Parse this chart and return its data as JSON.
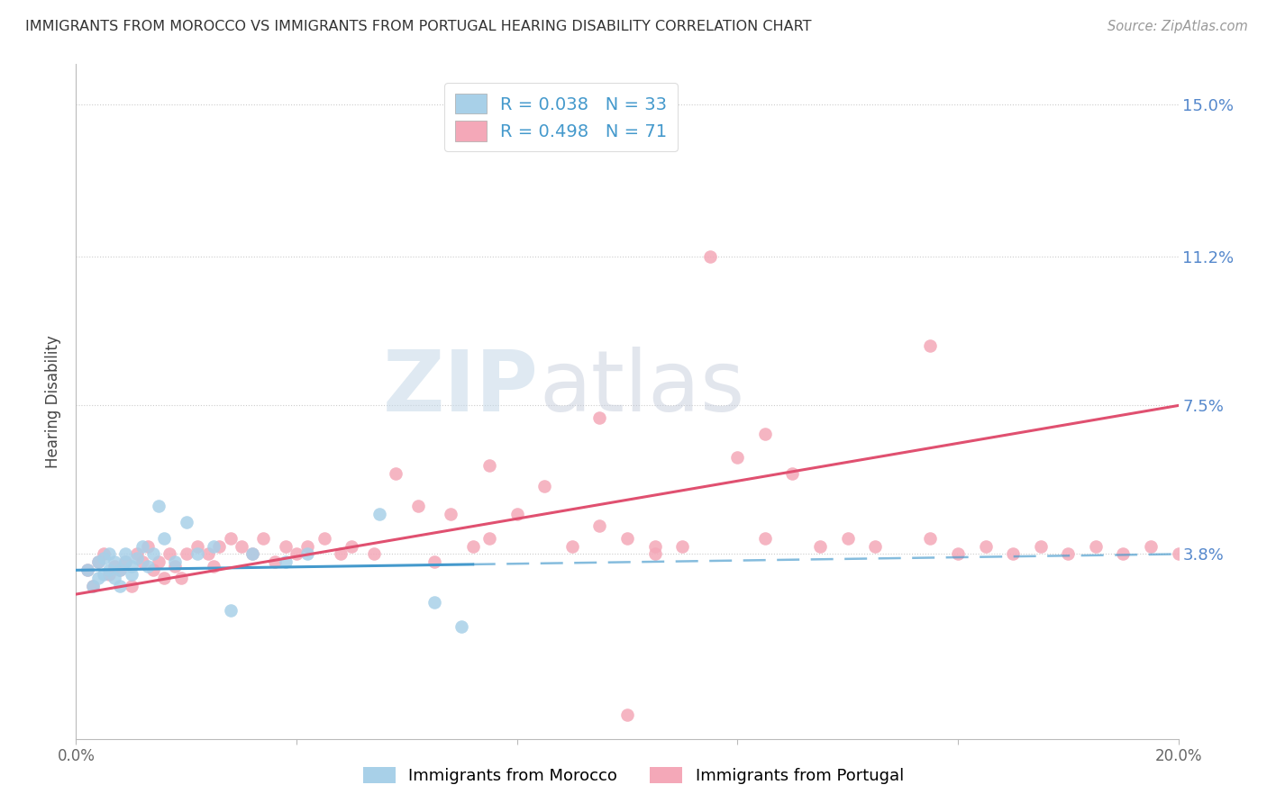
{
  "title": "IMMIGRANTS FROM MOROCCO VS IMMIGRANTS FROM PORTUGAL HEARING DISABILITY CORRELATION CHART",
  "source": "Source: ZipAtlas.com",
  "ylabel": "Hearing Disability",
  "xlim": [
    0.0,
    0.2
  ],
  "ylim": [
    -0.008,
    0.16
  ],
  "ytick_positions": [
    0.038,
    0.075,
    0.112,
    0.15
  ],
  "ytick_labels": [
    "3.8%",
    "7.5%",
    "11.2%",
    "15.0%"
  ],
  "morocco_R": 0.038,
  "morocco_N": 33,
  "portugal_R": 0.498,
  "portugal_N": 71,
  "morocco_color": "#a8d0e8",
  "portugal_color": "#f4a8b8",
  "morocco_line_color": "#4499cc",
  "portugal_line_color": "#e05070",
  "legend_text_color": "#4499cc",
  "watermark_zip_color": "#c8d8e8",
  "watermark_atlas_color": "#c8c8d8",
  "morocco_x": [
    0.002,
    0.003,
    0.004,
    0.004,
    0.005,
    0.005,
    0.006,
    0.006,
    0.007,
    0.007,
    0.008,
    0.008,
    0.009,
    0.009,
    0.01,
    0.01,
    0.011,
    0.012,
    0.013,
    0.014,
    0.015,
    0.016,
    0.018,
    0.02,
    0.022,
    0.025,
    0.028,
    0.032,
    0.038,
    0.042,
    0.055,
    0.065,
    0.07
  ],
  "morocco_y": [
    0.034,
    0.03,
    0.036,
    0.032,
    0.037,
    0.033,
    0.038,
    0.034,
    0.036,
    0.032,
    0.034,
    0.03,
    0.036,
    0.038,
    0.033,
    0.035,
    0.037,
    0.04,
    0.035,
    0.038,
    0.05,
    0.042,
    0.036,
    0.046,
    0.038,
    0.04,
    0.024,
    0.038,
    0.036,
    0.038,
    0.048,
    0.026,
    0.02
  ],
  "portugal_x": [
    0.002,
    0.003,
    0.004,
    0.005,
    0.006,
    0.007,
    0.008,
    0.009,
    0.01,
    0.011,
    0.012,
    0.013,
    0.014,
    0.015,
    0.016,
    0.017,
    0.018,
    0.019,
    0.02,
    0.022,
    0.024,
    0.025,
    0.026,
    0.028,
    0.03,
    0.032,
    0.034,
    0.036,
    0.038,
    0.04,
    0.042,
    0.045,
    0.048,
    0.05,
    0.054,
    0.058,
    0.062,
    0.065,
    0.068,
    0.072,
    0.075,
    0.08,
    0.085,
    0.09,
    0.095,
    0.1,
    0.105,
    0.11,
    0.115,
    0.12,
    0.125,
    0.13,
    0.135,
    0.14,
    0.145,
    0.155,
    0.16,
    0.165,
    0.17,
    0.175,
    0.18,
    0.185,
    0.19,
    0.195,
    0.2,
    0.155,
    0.125,
    0.095,
    0.075,
    0.105,
    0.1
  ],
  "portugal_y": [
    0.034,
    0.03,
    0.036,
    0.038,
    0.033,
    0.035,
    0.034,
    0.036,
    0.03,
    0.038,
    0.036,
    0.04,
    0.034,
    0.036,
    0.032,
    0.038,
    0.035,
    0.032,
    0.038,
    0.04,
    0.038,
    0.035,
    0.04,
    0.042,
    0.04,
    0.038,
    0.042,
    0.036,
    0.04,
    0.038,
    0.04,
    0.042,
    0.038,
    0.04,
    0.038,
    0.058,
    0.05,
    0.036,
    0.048,
    0.04,
    0.042,
    0.048,
    0.055,
    0.04,
    0.045,
    0.042,
    0.038,
    0.04,
    0.112,
    0.062,
    0.042,
    0.058,
    0.04,
    0.042,
    0.04,
    0.042,
    0.038,
    0.04,
    0.038,
    0.04,
    0.038,
    0.04,
    0.038,
    0.04,
    0.038,
    0.09,
    0.068,
    0.072,
    0.06,
    0.04,
    -0.002
  ],
  "por_line_start_y": 0.028,
  "por_line_end_y": 0.075,
  "mor_line_start_y": 0.034,
  "mor_line_end_y": 0.038
}
